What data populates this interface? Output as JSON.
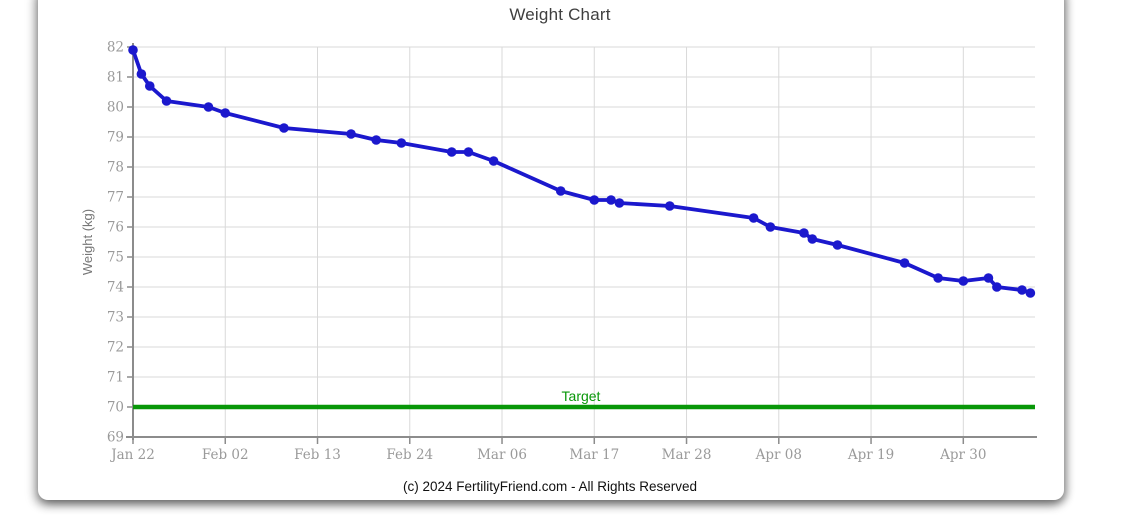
{
  "page": {
    "footer": "(c) 2024 FertilityFriend.com - All Rights Reserved"
  },
  "chart_data": {
    "type": "line",
    "title": "Weight Chart",
    "ylabel": "Weight (kg)",
    "ylim": [
      69,
      82
    ],
    "grid": true,
    "y_ticks": [
      69,
      70,
      71,
      72,
      73,
      74,
      75,
      76,
      77,
      78,
      79,
      80,
      81,
      82
    ],
    "x_ticks": [
      {
        "label": "Jan 22",
        "day": 0
      },
      {
        "label": "Feb 02",
        "day": 11
      },
      {
        "label": "Feb 13",
        "day": 22
      },
      {
        "label": "Feb 24",
        "day": 33
      },
      {
        "label": "Mar 06",
        "day": 44
      },
      {
        "label": "Mar 17",
        "day": 55
      },
      {
        "label": "Mar 28",
        "day": 66
      },
      {
        "label": "Apr 08",
        "day": 77
      },
      {
        "label": "Apr 19",
        "day": 88
      },
      {
        "label": "Apr 30",
        "day": 99
      }
    ],
    "series": [
      {
        "name": "Weight",
        "color": "#1b18cd",
        "points": [
          {
            "date": "Jan 22",
            "day": 0,
            "kg": 81.9
          },
          {
            "date": "Jan 23",
            "day": 1,
            "kg": 81.1
          },
          {
            "date": "Jan 24",
            "day": 2,
            "kg": 80.7
          },
          {
            "date": "Jan 26",
            "day": 4,
            "kg": 80.2
          },
          {
            "date": "Jan 31",
            "day": 9,
            "kg": 80.0
          },
          {
            "date": "Feb 02",
            "day": 11,
            "kg": 79.8
          },
          {
            "date": "Feb 09",
            "day": 18,
            "kg": 79.3
          },
          {
            "date": "Feb 17",
            "day": 26,
            "kg": 79.1
          },
          {
            "date": "Feb 20",
            "day": 29,
            "kg": 78.9
          },
          {
            "date": "Feb 23",
            "day": 32,
            "kg": 78.8
          },
          {
            "date": "Feb 29",
            "day": 38,
            "kg": 78.5
          },
          {
            "date": "Mar 02",
            "day": 40,
            "kg": 78.5
          },
          {
            "date": "Mar 05",
            "day": 43,
            "kg": 78.2
          },
          {
            "date": "Mar 13",
            "day": 51,
            "kg": 77.2
          },
          {
            "date": "Mar 17",
            "day": 55,
            "kg": 76.9
          },
          {
            "date": "Mar 19",
            "day": 57,
            "kg": 76.9
          },
          {
            "date": "Mar 20",
            "day": 58,
            "kg": 76.8
          },
          {
            "date": "Mar 26",
            "day": 64,
            "kg": 76.7
          },
          {
            "date": "Apr 05",
            "day": 74,
            "kg": 76.3
          },
          {
            "date": "Apr 07",
            "day": 76,
            "kg": 76.0
          },
          {
            "date": "Apr 11",
            "day": 80,
            "kg": 75.8
          },
          {
            "date": "Apr 12",
            "day": 81,
            "kg": 75.6
          },
          {
            "date": "Apr 15",
            "day": 84,
            "kg": 75.4
          },
          {
            "date": "Apr 23",
            "day": 92,
            "kg": 74.8
          },
          {
            "date": "Apr 27",
            "day": 96,
            "kg": 74.3
          },
          {
            "date": "Apr 30",
            "day": 99,
            "kg": 74.2
          },
          {
            "date": "May 03",
            "day": 102,
            "kg": 74.3
          },
          {
            "date": "May 04",
            "day": 103,
            "kg": 74.0
          },
          {
            "date": "May 07",
            "day": 106,
            "kg": 73.9
          },
          {
            "date": "May 08",
            "day": 107,
            "kg": 73.8
          }
        ]
      }
    ],
    "target_line": {
      "label": "Target",
      "value": 70,
      "color": "#089708"
    },
    "colors": {
      "grid": "#d9d9d9",
      "axis": "#8c8c8c",
      "tick_text": "#9a9a9a",
      "axis_label_text": "#777777",
      "title_text": "#3f3f3f"
    }
  }
}
